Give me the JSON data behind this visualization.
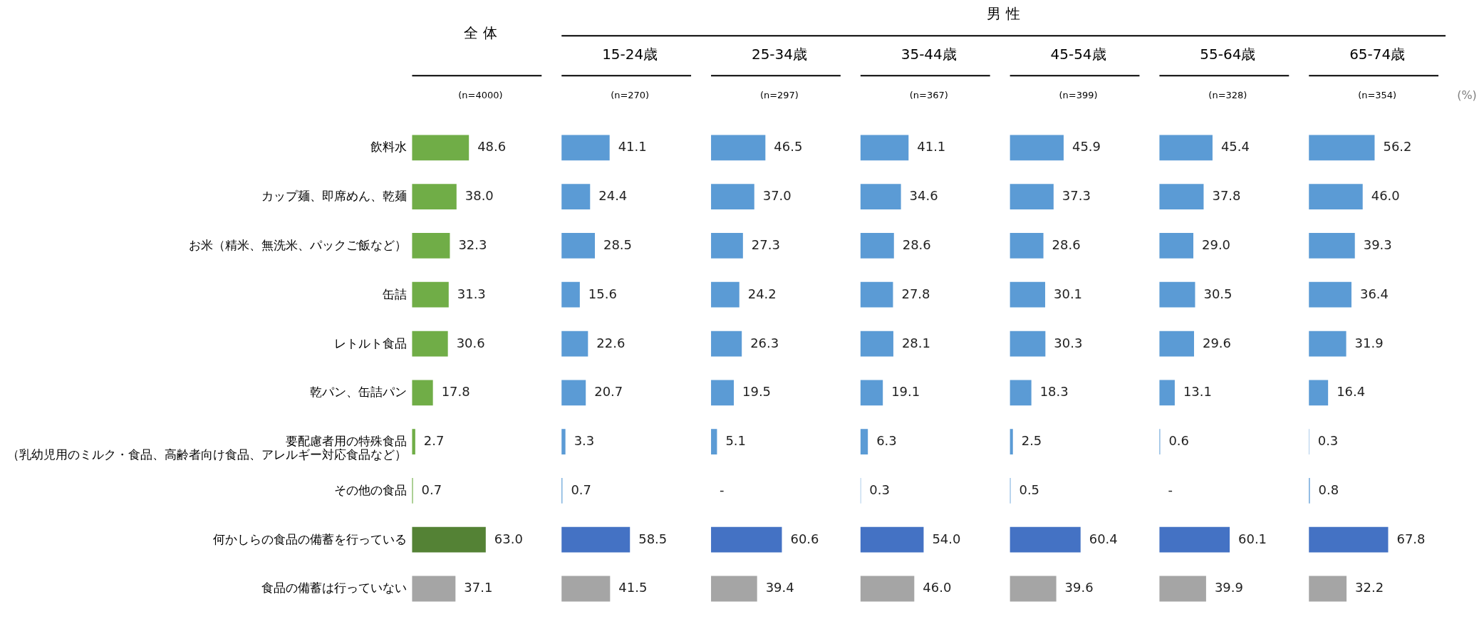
{
  "chart_data": [
    {
      "type": "bar",
      "orientation": "horizontal",
      "title": "全 体",
      "subtitle": "(n=4000)",
      "categories": [
        "飲料水",
        "カップ麺、即席めん、乾麺",
        "お米（精米、無洗米、パックご飯など）",
        "缶詰",
        "レトルト食品",
        "乾パン、缶詰パン",
        "要配慮者用の特殊食品（乳幼児用のミルク・食品、高齢者向け食品、アレルギー対応食品など）",
        "その他の食品",
        "何かしらの食品の備蓄を行っている",
        "食品の備蓄は行っていない"
      ],
      "values": [
        48.6,
        38.0,
        32.3,
        31.3,
        30.6,
        17.8,
        2.7,
        0.7,
        63.0,
        37.1
      ],
      "value_labels": [
        "48.6",
        "38.0",
        "32.3",
        "31.3",
        "30.6",
        "17.8",
        "2.7",
        "0.7",
        "63.0",
        "37.1"
      ],
      "colors": [
        "#70ad47",
        "#70ad47",
        "#70ad47",
        "#70ad47",
        "#70ad47",
        "#70ad47",
        "#70ad47",
        "#70ad47",
        "#548235",
        "#a5a5a5"
      ],
      "tick_labels": "y"
    },
    {
      "type": "bar",
      "orientation": "horizontal",
      "title": "15-24歳",
      "subtitle": "(n=270)",
      "annotations": [
        "男 性"
      ],
      "values": [
        41.1,
        24.4,
        28.5,
        15.6,
        22.6,
        20.7,
        3.3,
        0.7,
        58.5,
        41.5
      ],
      "value_labels": [
        "41.1",
        "24.4",
        "28.5",
        "15.6",
        "22.6",
        "20.7",
        "3.3",
        "0.7",
        "58.5",
        "41.5"
      ],
      "colors": [
        "#5b9bd5",
        "#5b9bd5",
        "#5b9bd5",
        "#5b9bd5",
        "#5b9bd5",
        "#5b9bd5",
        "#5b9bd5",
        "#5b9bd5",
        "#4472c4",
        "#a5a5a5"
      ],
      "tick_labels": false
    },
    {
      "type": "bar",
      "orientation": "horizontal",
      "title": "25-34歳",
      "subtitle": "(n=297)",
      "values": [
        46.5,
        37.0,
        27.3,
        24.2,
        26.3,
        19.5,
        5.1,
        null,
        60.6,
        39.4
      ],
      "value_labels": [
        "46.5",
        "37.0",
        "27.3",
        "24.2",
        "26.3",
        "19.5",
        "5.1",
        "-",
        "60.6",
        "39.4"
      ],
      "colors": [
        "#5b9bd5",
        "#5b9bd5",
        "#5b9bd5",
        "#5b9bd5",
        "#5b9bd5",
        "#5b9bd5",
        "#5b9bd5",
        "#5b9bd5",
        "#4472c4",
        "#a5a5a5"
      ],
      "tick_labels": false
    },
    {
      "type": "bar",
      "orientation": "horizontal",
      "title": "35-44歳",
      "subtitle": "(n=367)",
      "values": [
        41.1,
        34.6,
        28.6,
        27.8,
        28.1,
        19.1,
        6.3,
        0.3,
        54.0,
        46.0
      ],
      "value_labels": [
        "41.1",
        "34.6",
        "28.6",
        "27.8",
        "28.1",
        "19.1",
        "6.3",
        "0.3",
        "54.0",
        "46.0"
      ],
      "colors": [
        "#5b9bd5",
        "#5b9bd5",
        "#5b9bd5",
        "#5b9bd5",
        "#5b9bd5",
        "#5b9bd5",
        "#5b9bd5",
        "#5b9bd5",
        "#4472c4",
        "#a5a5a5"
      ],
      "tick_labels": false
    },
    {
      "type": "bar",
      "orientation": "horizontal",
      "title": "45-54歳",
      "subtitle": "(n=399)",
      "values": [
        45.9,
        37.3,
        28.6,
        30.1,
        30.3,
        18.3,
        2.5,
        0.5,
        60.4,
        39.6
      ],
      "value_labels": [
        "45.9",
        "37.3",
        "28.6",
        "30.1",
        "30.3",
        "18.3",
        "2.5",
        "0.5",
        "60.4",
        "39.6"
      ],
      "colors": [
        "#5b9bd5",
        "#5b9bd5",
        "#5b9bd5",
        "#5b9bd5",
        "#5b9bd5",
        "#5b9bd5",
        "#5b9bd5",
        "#5b9bd5",
        "#4472c4",
        "#a5a5a5"
      ],
      "tick_labels": false
    },
    {
      "type": "bar",
      "orientation": "horizontal",
      "title": "55-64歳",
      "subtitle": "(n=328)",
      "values": [
        45.4,
        37.8,
        29.0,
        30.5,
        29.6,
        13.1,
        0.6,
        null,
        60.1,
        39.9
      ],
      "value_labels": [
        "45.4",
        "37.8",
        "29.0",
        "30.5",
        "29.6",
        "13.1",
        "0.6",
        "-",
        "60.1",
        "39.9"
      ],
      "colors": [
        "#5b9bd5",
        "#5b9bd5",
        "#5b9bd5",
        "#5b9bd5",
        "#5b9bd5",
        "#5b9bd5",
        "#5b9bd5",
        "#5b9bd5",
        "#4472c4",
        "#a5a5a5"
      ],
      "tick_labels": false
    },
    {
      "type": "bar",
      "orientation": "horizontal",
      "title": "65-74歳",
      "subtitle": "(n=354)",
      "annotations": [
        "(%)"
      ],
      "values": [
        56.2,
        46.0,
        39.3,
        36.4,
        31.9,
        16.4,
        0.3,
        0.8,
        67.8,
        32.2
      ],
      "value_labels": [
        "56.2",
        "46.0",
        "39.3",
        "36.4",
        "31.9",
        "16.4",
        "0.3",
        "0.8",
        "67.8",
        "32.2"
      ],
      "colors": [
        "#5b9bd5",
        "#5b9bd5",
        "#5b9bd5",
        "#5b9bd5",
        "#5b9bd5",
        "#5b9bd5",
        "#5b9bd5",
        "#5b9bd5",
        "#4472c4",
        "#a5a5a5"
      ],
      "tick_labels": false
    }
  ]
}
